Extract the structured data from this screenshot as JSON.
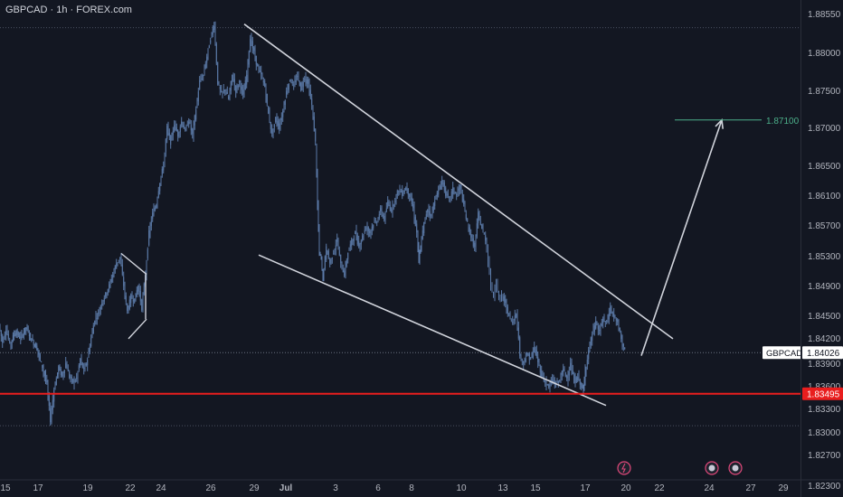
{
  "header": {
    "title": "GBPCAD · 1h · FOREX.com"
  },
  "colors": {
    "background": "#131722",
    "candle": "#5b7aa8",
    "trendline": "#d1d4dc",
    "support": "#e91e1e",
    "target": "#4caf8a",
    "axis_text": "#b2b5be"
  },
  "price_axis": {
    "ticks": [
      "1.88550",
      "1.88000",
      "1.87500",
      "1.87000",
      "1.86500",
      "1.86100",
      "1.85700",
      "1.85300",
      "1.84900",
      "1.84500",
      "1.84200",
      "1.83900",
      "1.83600",
      "1.83300",
      "1.83000",
      "1.82700",
      "1.82300"
    ]
  },
  "time_axis": {
    "labels": [
      "15",
      "17",
      "19",
      "22",
      "24",
      "26",
      "29",
      "Jul",
      "3",
      "6",
      "8",
      "10",
      "13",
      "15",
      "17",
      "20",
      "22",
      "24",
      "27",
      "29"
    ]
  },
  "current_price": {
    "symbol": "GBPCAD",
    "value": "1.84026"
  },
  "support_level": {
    "value": "1.83495"
  },
  "target_level": {
    "value": "1.87100"
  },
  "event_icons": [
    "lightning-icon",
    "flag-icon",
    "flag-icon"
  ],
  "chart_data": {
    "type": "candlestick",
    "title": "GBPCAD · 1h · FOREX.com",
    "ylim": [
      1.8225,
      1.8875
    ],
    "x_labels": [
      "15",
      "17",
      "19",
      "22",
      "24",
      "26",
      "29",
      "Jul",
      "3",
      "6",
      "8",
      "10",
      "13",
      "15",
      "17",
      "20",
      "22",
      "24",
      "27",
      "29"
    ],
    "series": [
      {
        "path": [
          [
            0,
            1.8438
          ],
          [
            4,
            1.8415
          ],
          [
            8,
            1.8432
          ],
          [
            12,
            1.8412
          ],
          [
            18,
            1.8428
          ],
          [
            24,
            1.842
          ],
          [
            30,
            1.8434
          ],
          [
            36,
            1.8418
          ],
          [
            42,
            1.8408
          ],
          [
            48,
            1.8385
          ],
          [
            53,
            1.8362
          ],
          [
            57,
            1.8315
          ],
          [
            61,
            1.8355
          ],
          [
            66,
            1.8385
          ],
          [
            70,
            1.8372
          ],
          [
            74,
            1.839
          ],
          [
            78,
            1.8372
          ],
          [
            82,
            1.8365
          ],
          [
            86,
            1.837
          ],
          [
            90,
            1.8395
          ],
          [
            94,
            1.838
          ],
          [
            98,
            1.8395
          ],
          [
            102,
            1.842
          ],
          [
            106,
            1.8445
          ],
          [
            110,
            1.8452
          ],
          [
            114,
            1.8468
          ],
          [
            118,
            1.8478
          ],
          [
            122,
            1.849
          ],
          [
            126,
            1.8505
          ],
          [
            130,
            1.852
          ],
          [
            134,
            1.8528
          ],
          [
            138,
            1.849
          ],
          [
            142,
            1.8455
          ],
          [
            146,
            1.8475
          ],
          [
            150,
            1.847
          ],
          [
            154,
            1.849
          ],
          [
            158,
            1.846
          ],
          [
            162,
            1.8505
          ],
          [
            166,
            1.856
          ],
          [
            170,
            1.8585
          ],
          [
            174,
            1.8598
          ],
          [
            178,
            1.8628
          ],
          [
            182,
            1.865
          ],
          [
            186,
            1.87
          ],
          [
            190,
            1.868
          ],
          [
            194,
            1.8705
          ],
          [
            198,
            1.869
          ],
          [
            202,
            1.8708
          ],
          [
            206,
            1.8695
          ],
          [
            210,
            1.871
          ],
          [
            214,
            1.869
          ],
          [
            218,
            1.8725
          ],
          [
            222,
            1.8762
          ],
          [
            226,
            1.877
          ],
          [
            230,
            1.8795
          ],
          [
            234,
            1.882
          ],
          [
            238,
            1.884
          ],
          [
            242,
            1.876
          ],
          [
            246,
            1.8745
          ],
          [
            250,
            1.8752
          ],
          [
            254,
            1.8738
          ],
          [
            258,
            1.877
          ],
          [
            262,
            1.875
          ],
          [
            266,
            1.8762
          ],
          [
            270,
            1.8742
          ],
          [
            274,
            1.877
          ],
          [
            278,
            1.882
          ],
          [
            282,
            1.88
          ],
          [
            286,
            1.878
          ],
          [
            290,
            1.877
          ],
          [
            294,
            1.8755
          ],
          [
            298,
            1.8718
          ],
          [
            302,
            1.869
          ],
          [
            306,
            1.8712
          ],
          [
            310,
            1.87
          ],
          [
            314,
            1.8722
          ],
          [
            318,
            1.8748
          ],
          [
            322,
            1.8765
          ],
          [
            326,
            1.8755
          ],
          [
            330,
            1.877
          ],
          [
            334,
            1.8752
          ],
          [
            338,
            1.8768
          ],
          [
            342,
            1.8758
          ],
          [
            346,
            1.873
          ],
          [
            350,
            1.868
          ],
          [
            352,
            1.8595
          ],
          [
            354,
            1.8535
          ],
          [
            356,
            1.8525
          ],
          [
            358,
            1.85
          ],
          [
            362,
            1.854
          ],
          [
            366,
            1.852
          ],
          [
            370,
            1.8535
          ],
          [
            374,
            1.855
          ],
          [
            378,
            1.8518
          ],
          [
            382,
            1.8505
          ],
          [
            386,
            1.8535
          ],
          [
            390,
            1.8548
          ],
          [
            394,
            1.856
          ],
          [
            398,
            1.8542
          ],
          [
            402,
            1.8555
          ],
          [
            406,
            1.8568
          ],
          [
            410,
            1.856
          ],
          [
            414,
            1.8572
          ],
          [
            418,
            1.8575
          ],
          [
            422,
            1.859
          ],
          [
            426,
            1.8578
          ],
          [
            430,
            1.86
          ],
          [
            434,
            1.859
          ],
          [
            438,
            1.8605
          ],
          [
            442,
            1.8618
          ],
          [
            446,
            1.8612
          ],
          [
            450,
            1.862
          ],
          [
            454,
            1.861
          ],
          [
            458,
            1.8592
          ],
          [
            462,
            1.856
          ],
          [
            464,
            1.8522
          ],
          [
            466,
            1.854
          ],
          [
            470,
            1.8572
          ],
          [
            474,
            1.8592
          ],
          [
            478,
            1.8582
          ],
          [
            482,
            1.8605
          ],
          [
            486,
            1.8615
          ],
          [
            490,
            1.863
          ],
          [
            494,
            1.8612
          ],
          [
            498,
            1.8605
          ],
          [
            502,
            1.8618
          ],
          [
            506,
            1.861
          ],
          [
            510,
            1.8622
          ],
          [
            514,
            1.8595
          ],
          [
            518,
            1.8572
          ],
          [
            522,
            1.8555
          ],
          [
            526,
            1.854
          ],
          [
            530,
            1.8585
          ],
          [
            534,
            1.8565
          ],
          [
            538,
            1.8552
          ],
          [
            541,
            1.8525
          ],
          [
            544,
            1.849
          ],
          [
            547,
            1.8475
          ],
          [
            550,
            1.8498
          ],
          [
            553,
            1.847
          ],
          [
            556,
            1.8478
          ],
          [
            560,
            1.8465
          ],
          [
            564,
            1.845
          ],
          [
            568,
            1.844
          ],
          [
            572,
            1.8455
          ],
          [
            576,
            1.84
          ],
          [
            580,
            1.839
          ],
          [
            584,
            1.84
          ],
          [
            588,
            1.8395
          ],
          [
            592,
            1.8408
          ],
          [
            596,
            1.8392
          ],
          [
            600,
            1.8375
          ],
          [
            604,
            1.8365
          ],
          [
            608,
            1.8358
          ],
          [
            612,
            1.8368
          ],
          [
            616,
            1.8362
          ],
          [
            620,
            1.8368
          ],
          [
            624,
            1.8382
          ],
          [
            628,
            1.837
          ],
          [
            632,
            1.8388
          ],
          [
            636,
            1.8365
          ],
          [
            640,
            1.8372
          ],
          [
            644,
            1.836
          ],
          [
            646,
            1.8352
          ],
          [
            648,
            1.838
          ],
          [
            652,
            1.8405
          ],
          [
            656,
            1.8425
          ],
          [
            660,
            1.844
          ],
          [
            664,
            1.8428
          ],
          [
            668,
            1.8445
          ],
          [
            672,
            1.844
          ],
          [
            676,
            1.846
          ],
          [
            680,
            1.8448
          ],
          [
            684,
            1.844
          ],
          [
            688,
            1.842
          ],
          [
            692,
            1.8405
          ]
        ]
      }
    ],
    "annotations": {
      "upper_channel": [
        [
          270,
          1.884
        ],
        [
          744,
          1.8419
        ]
      ],
      "lower_channel": [
        [
          286,
          1.8531
        ],
        [
          670,
          1.8334
        ]
      ],
      "small_flag_upper": [
        [
          134,
          1.8533
        ],
        [
          162,
          1.8505
        ]
      ],
      "small_flag_lower": [
        [
          142,
          1.8419
        ],
        [
          162,
          1.8445
        ]
      ],
      "flag_vertical": [
        [
          161,
          1.8505
        ],
        [
          161,
          1.8445
        ]
      ],
      "arrow": [
        [
          709,
          1.8399
        ],
        [
          798,
          1.871
        ]
      ],
      "target_line": [
        [
          746,
          1.871
        ],
        [
          842,
          1.871
        ]
      ],
      "high_dotted": 1.8835,
      "low_dotted": 1.8308
    }
  }
}
